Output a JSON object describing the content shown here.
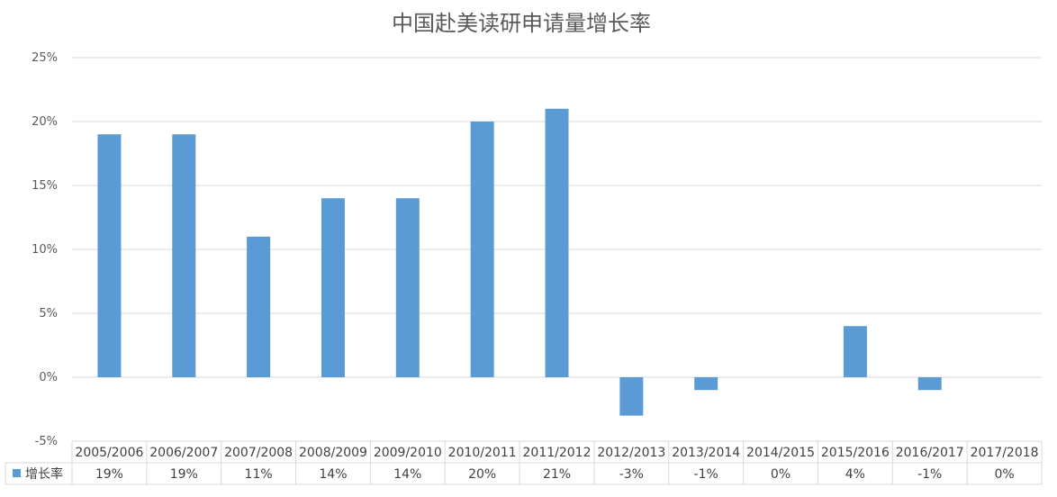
{
  "chart_data": {
    "type": "bar",
    "title": "中国赴美读研申请量增长率",
    "categories": [
      "2005/2006",
      "2006/2007",
      "2007/2008",
      "2008/2009",
      "2009/2010",
      "2010/2011",
      "2011/2012",
      "2012/2013",
      "2013/2014",
      "2014/2015",
      "2015/2016",
      "2016/2017",
      "2017/2018"
    ],
    "series": [
      {
        "name": "增长率",
        "values": [
          19,
          19,
          11,
          14,
          14,
          20,
          21,
          -3,
          -1,
          0,
          4,
          -1,
          0
        ],
        "labels": [
          "19%",
          "19%",
          "11%",
          "14%",
          "14%",
          "20%",
          "21%",
          "-3%",
          "-1%",
          "0%",
          "4%",
          "-1%",
          "0%"
        ],
        "color": "#5b9bd5"
      }
    ],
    "y_ticks": [
      "25%",
      "20%",
      "15%",
      "10%",
      "5%",
      "0%",
      "-5%"
    ],
    "y_tick_values": [
      25,
      20,
      15,
      10,
      5,
      0,
      -5
    ],
    "ylim": [
      -5,
      25
    ],
    "grid": true,
    "legend": "data-table",
    "xlabel": "",
    "ylabel": ""
  }
}
